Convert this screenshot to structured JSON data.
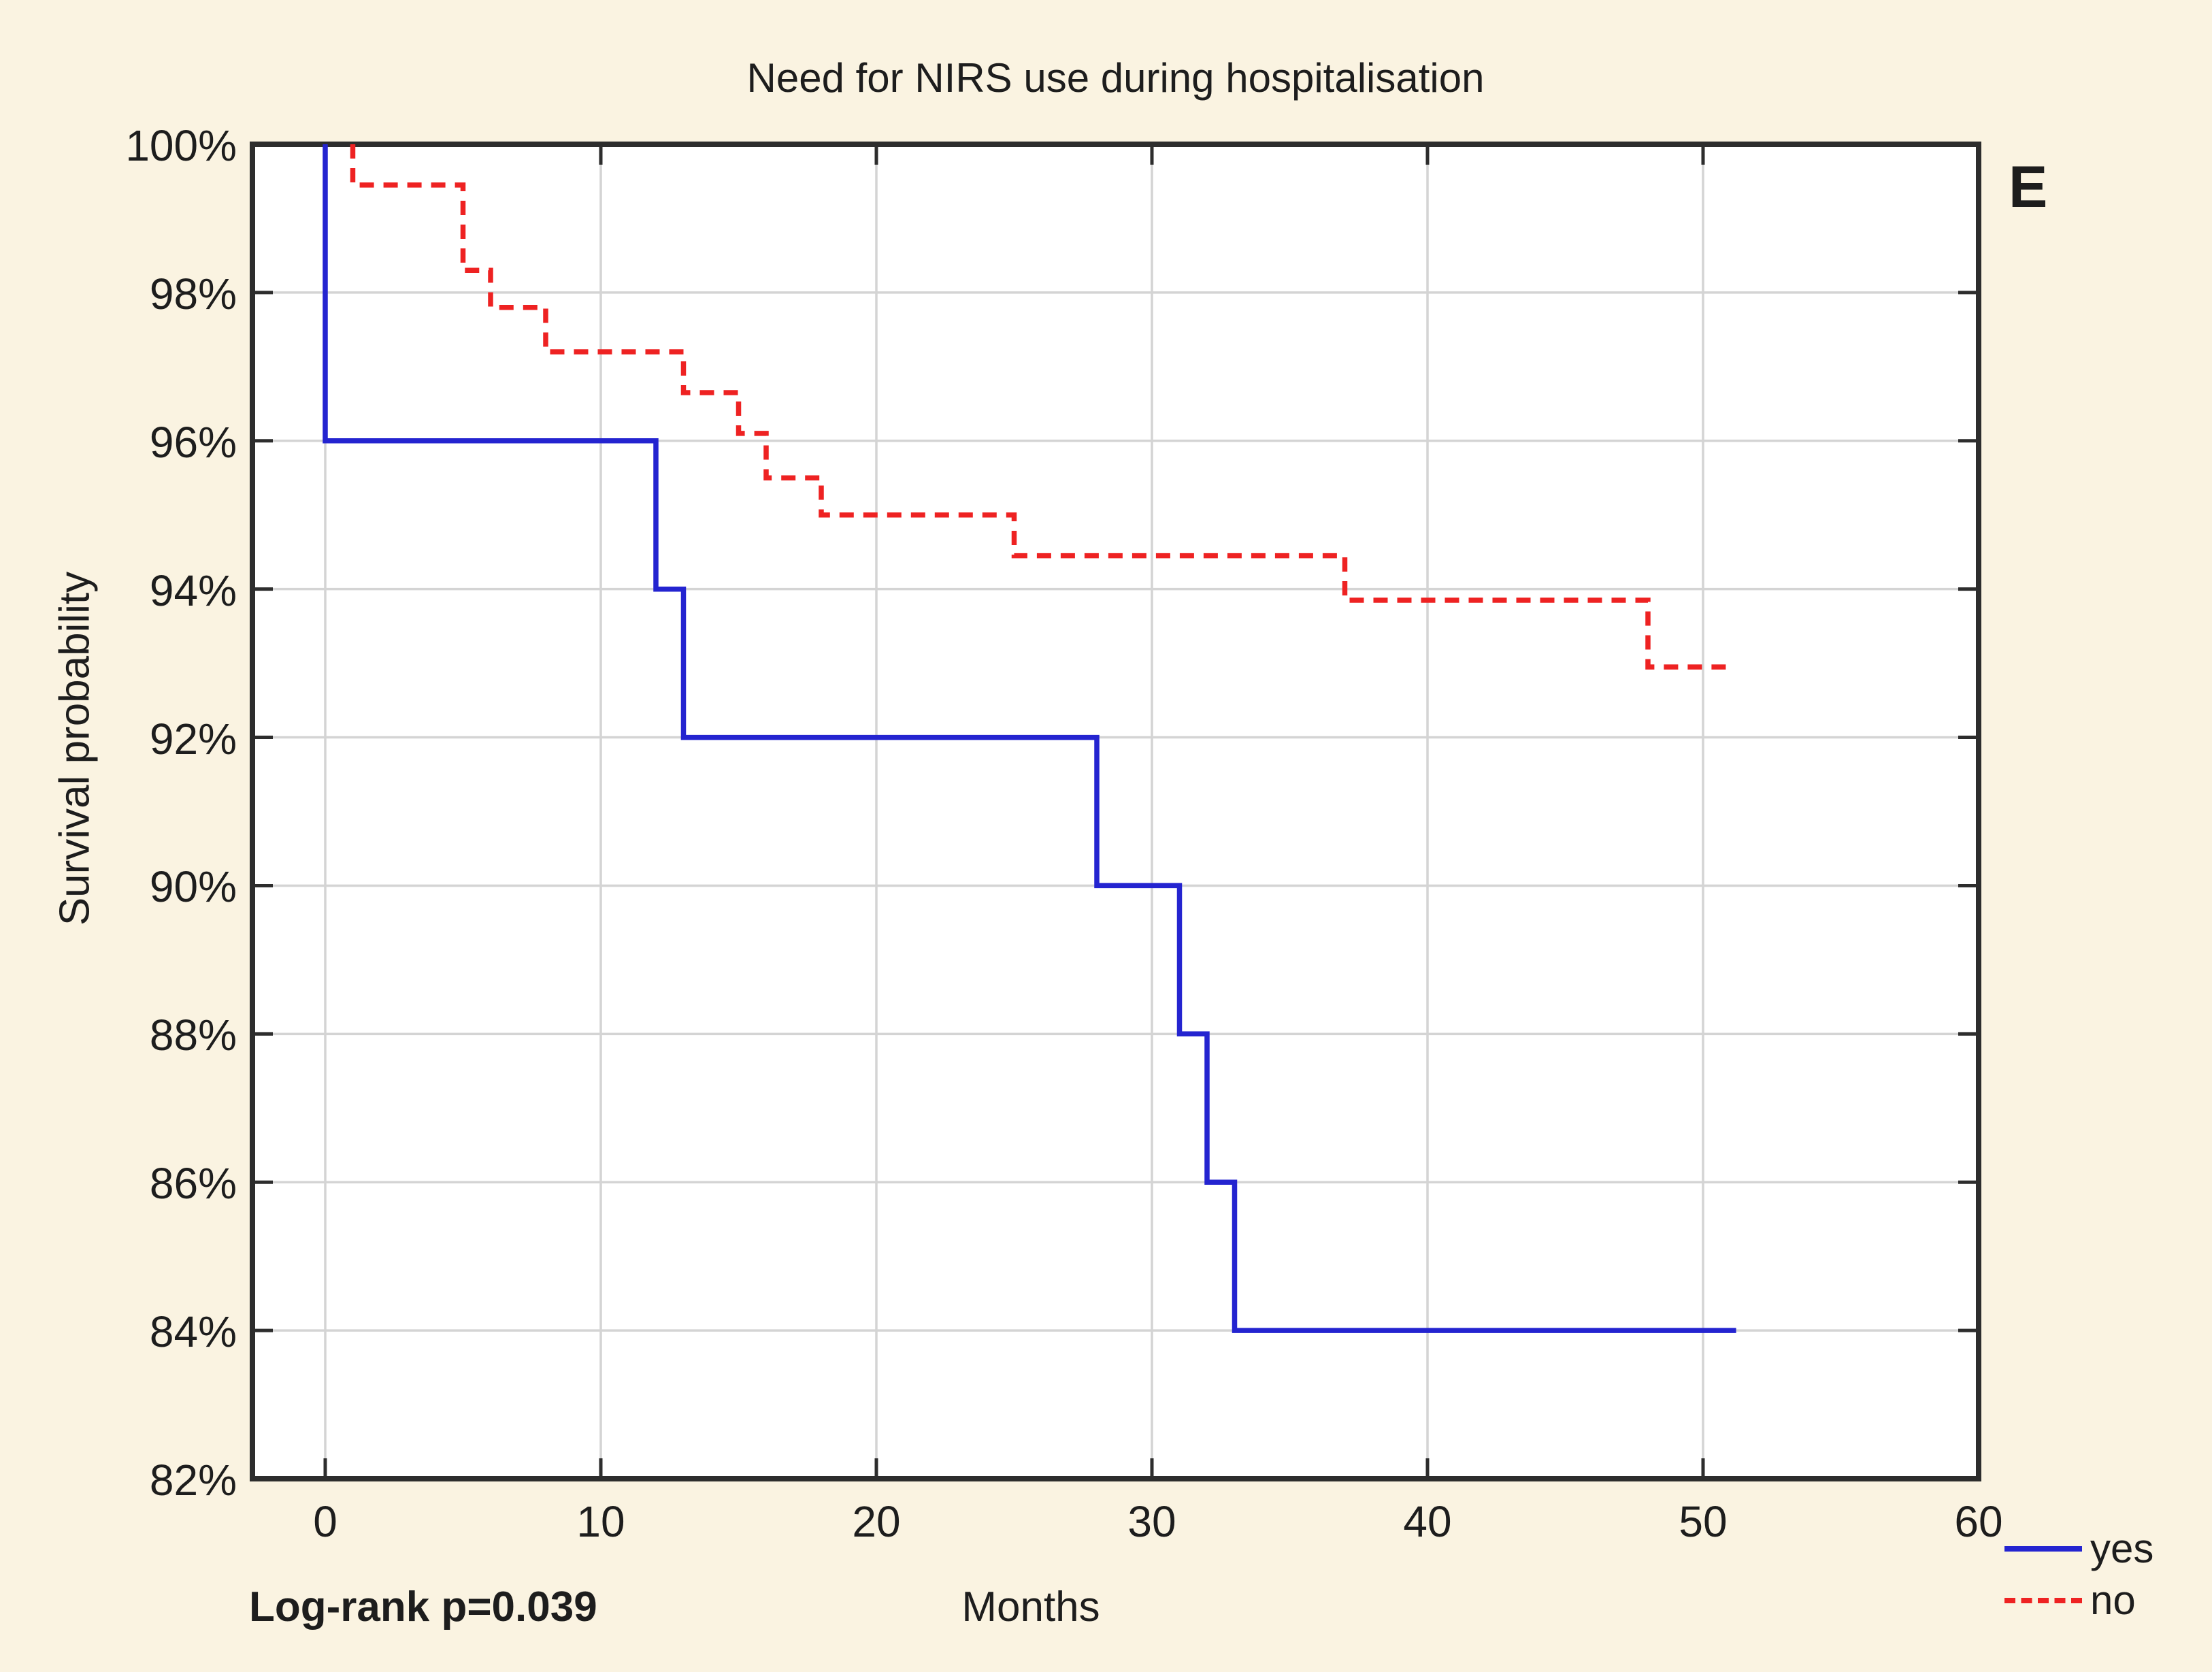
{
  "figure": {
    "title": "Need for NIRS use during hospitalisation",
    "panel_label": "E",
    "annotation": "Log-rank p=0.039",
    "x_axis": {
      "label": "Months",
      "tick_labels": [
        "0",
        "10",
        "20",
        "30",
        "40",
        "50",
        "60"
      ],
      "tick_values": [
        0,
        10,
        20,
        30,
        40,
        50,
        60
      ]
    },
    "y_axis": {
      "label": "Survival probability",
      "tick_labels": [
        "100%",
        "98%",
        "96%",
        "94%",
        "92%",
        "90%",
        "88%",
        "86%",
        "84%",
        "82%"
      ],
      "tick_values": [
        100,
        98,
        96,
        94,
        92,
        90,
        88,
        86,
        84,
        82
      ]
    },
    "legend": {
      "items": [
        {
          "label": "yes",
          "style": "solid"
        },
        {
          "label": "no",
          "style": "dashed"
        }
      ]
    },
    "colors": {
      "background": "#faf3e1",
      "plot_background": "#ffffff",
      "frame": "#2d2d2d",
      "gridline": "#d4d4d4",
      "series_yes": "#2424d0",
      "series_no": "#ee2222",
      "text": "#1d1d1d"
    }
  },
  "chart_data": {
    "type": "line",
    "subtype": "kaplan-meier-step-survival",
    "title": "Need for NIRS use during hospitalisation",
    "xlabel": "Months",
    "ylabel": "Survival probability",
    "xlim": [
      0,
      60
    ],
    "ylim": [
      82,
      100
    ],
    "y_unit": "%",
    "grid": true,
    "legend_position": "bottom-right-outside",
    "annotations": [
      "Log-rank p=0.039",
      "E"
    ],
    "series": [
      {
        "name": "yes",
        "style": "solid",
        "color": "#2424d0",
        "x_months": [
          0,
          0,
          12,
          12,
          13,
          13,
          28,
          28,
          31,
          31,
          32,
          32,
          33,
          33,
          51.2
        ],
        "y_percent": [
          100,
          96,
          96,
          94,
          94,
          92,
          92,
          90,
          90,
          88,
          88,
          86,
          86,
          84,
          84
        ]
      },
      {
        "name": "no",
        "style": "dashed",
        "color": "#ee2222",
        "x_months": [
          1,
          1,
          5,
          5,
          6,
          6,
          8,
          8,
          13,
          13,
          15,
          15,
          16,
          16,
          18,
          18,
          25,
          25,
          37,
          37,
          48,
          48,
          51
        ],
        "y_percent": [
          100,
          99.45,
          99.45,
          98.3,
          98.3,
          97.8,
          97.8,
          97.2,
          97.2,
          96.65,
          96.65,
          96.1,
          96.1,
          95.5,
          95.5,
          95.0,
          95.0,
          94.45,
          94.45,
          93.85,
          93.85,
          92.95,
          92.95
        ]
      }
    ]
  }
}
